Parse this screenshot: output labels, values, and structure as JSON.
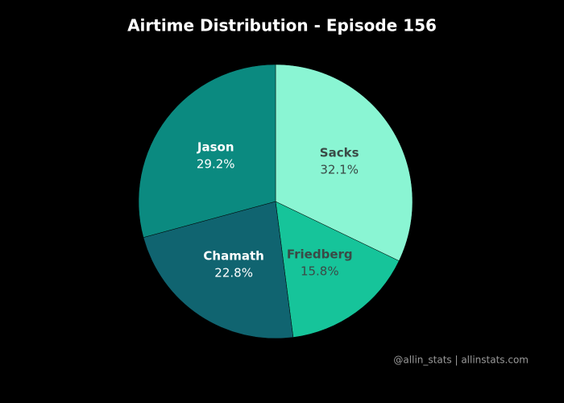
{
  "chart_data": {
    "type": "pie",
    "title": "Airtime Distribution - Episode 156",
    "categories": [
      "Sacks",
      "Friedberg",
      "Chamath",
      "Jason"
    ],
    "values": [
      32.1,
      15.8,
      22.8,
      29.2
    ],
    "value_labels": [
      "32.1%",
      "15.8%",
      "22.8%",
      "29.2%"
    ],
    "colors": [
      "#8af5d3",
      "#16c49a",
      "#106470",
      "#0b8a80"
    ],
    "footer": "@allin_stats | allinstats.com"
  }
}
